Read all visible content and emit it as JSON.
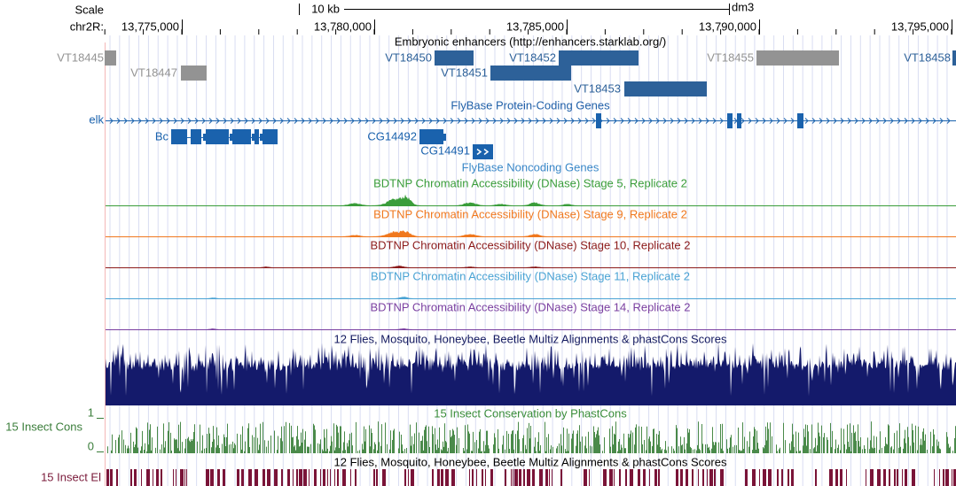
{
  "header": {
    "scale_label": "Scale",
    "chrom_label": "chr2R:",
    "scale_bar": "10 kb",
    "assembly": "dm3"
  },
  "ruler": {
    "labels": [
      "13,775,000",
      "13,780,000",
      "13,785,000",
      "13,790,000",
      "13,795,000"
    ]
  },
  "tracks": {
    "enhancers": {
      "title": "Embryonic enhancers (http://enhancers.starklab.org/)",
      "items": [
        "VT18445",
        "VT18447",
        "VT18450",
        "VT18451",
        "VT18452",
        "VT18453",
        "VT18455",
        "VT18458"
      ]
    },
    "protein_coding": {
      "title": "FlyBase Protein-Coding Genes",
      "genes": [
        "elk",
        "Bc",
        "CG14492",
        "CG14491"
      ]
    },
    "noncoding": {
      "title": "FlyBase Noncoding Genes"
    },
    "dnase": [
      {
        "title": "BDTNP Chromatin Accessibility (DNase) Stage 5, Replicate 2"
      },
      {
        "title": "BDTNP Chromatin Accessibility (DNase) Stage 9, Replicate 2"
      },
      {
        "title": "BDTNP Chromatin Accessibility (DNase) Stage 10, Replicate 2"
      },
      {
        "title": "BDTNP Chromatin Accessibility (DNase) Stage 11, Replicate 2"
      },
      {
        "title": "BDTNP Chromatin Accessibility (DNase) Stage 14, Replicate 2"
      }
    ],
    "multiz": {
      "title": "12 Flies, Mosquito, Honeybee, Beetle Multiz Alignments & phastCons Scores"
    },
    "phastcons": {
      "label": "15 Insect Cons",
      "title": "15 Insect Conservation by PhastCons",
      "ymax": 1,
      "ymin": 0
    },
    "elements": {
      "label": "15 Insect El",
      "title": "12 Flies, Mosquito, Honeybee, Beetle Multiz Alignments & phastCons Scores"
    }
  }
}
